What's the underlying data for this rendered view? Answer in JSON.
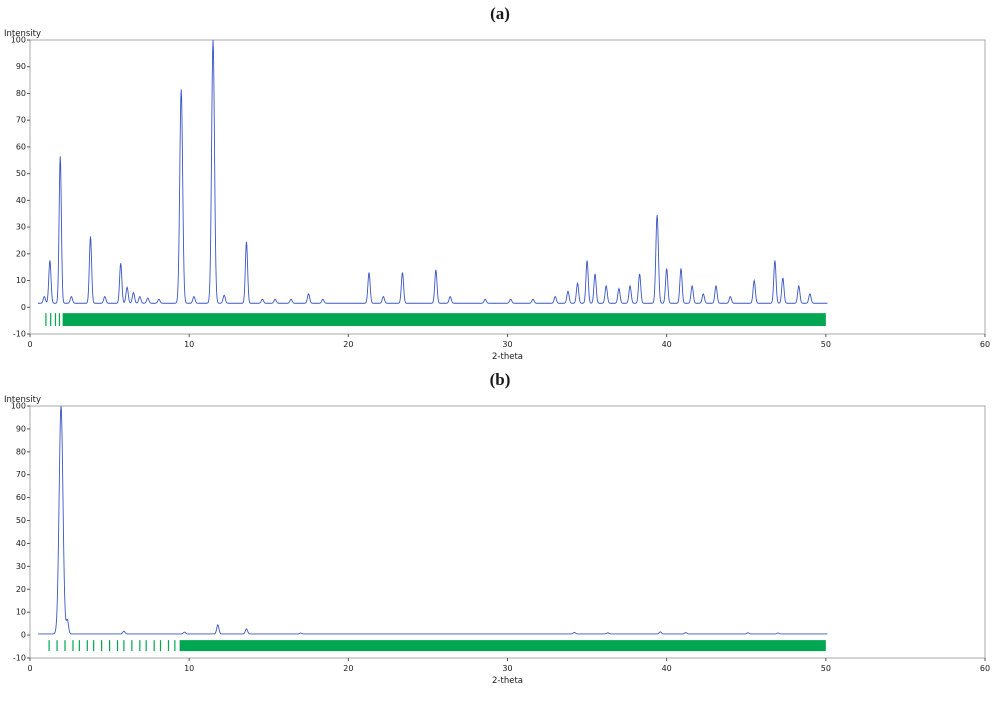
{
  "page": {
    "background": "#ffffff"
  },
  "panels": [
    {
      "title": "(a)"
    },
    {
      "title": "(b)"
    }
  ],
  "chart_data": [
    {
      "type": "line",
      "title": "(a)",
      "xlabel": "2-theta",
      "ylabel": "Intensity",
      "xlim": [
        0,
        60
      ],
      "ylim": [
        -10,
        100
      ],
      "x_ticks": [
        0,
        10,
        20,
        30,
        40,
        50,
        60
      ],
      "y_tick_step": 10,
      "grid": false,
      "legend": "none",
      "line_color": "#3b56c4",
      "marker_color": "#00a651",
      "frame_color": "#aaaaaa",
      "baseline": 1.5,
      "data_x_range": [
        0.5,
        50.1
      ],
      "peaks": [
        [
          0.9,
          2.5
        ],
        [
          1.25,
          16
        ],
        [
          1.9,
          55
        ],
        [
          2.6,
          2.5
        ],
        [
          3.8,
          25
        ],
        [
          4.7,
          2.5
        ],
        [
          5.7,
          15
        ],
        [
          6.1,
          6
        ],
        [
          6.5,
          4
        ],
        [
          6.9,
          2.5
        ],
        [
          7.4,
          2
        ],
        [
          8.1,
          1.5
        ],
        [
          9.5,
          80,
          0.09
        ],
        [
          10.3,
          2.5
        ],
        [
          11.5,
          98.5,
          0.09
        ],
        [
          12.2,
          3
        ],
        [
          13.6,
          23
        ],
        [
          14.6,
          1.5
        ],
        [
          15.4,
          1.5
        ],
        [
          16.4,
          1.5
        ],
        [
          17.5,
          3.5
        ],
        [
          18.4,
          1.5
        ],
        [
          21.3,
          11.5
        ],
        [
          22.2,
          2.5
        ],
        [
          23.4,
          11.5
        ],
        [
          25.5,
          12.5
        ],
        [
          26.4,
          2.5
        ],
        [
          28.6,
          1.5
        ],
        [
          30.2,
          1.5
        ],
        [
          31.6,
          1.5
        ],
        [
          33.0,
          2.5
        ],
        [
          33.8,
          4.5
        ],
        [
          34.4,
          7.5
        ],
        [
          35.0,
          16
        ],
        [
          35.5,
          11
        ],
        [
          36.2,
          6.5
        ],
        [
          37.0,
          5.5
        ],
        [
          37.7,
          6.5
        ],
        [
          38.3,
          11
        ],
        [
          39.4,
          33,
          0.08
        ],
        [
          40.0,
          13
        ],
        [
          40.9,
          13
        ],
        [
          41.6,
          6.5
        ],
        [
          42.3,
          3.5
        ],
        [
          43.1,
          6.5
        ],
        [
          44.0,
          2.5
        ],
        [
          45.5,
          8.5
        ],
        [
          46.8,
          16
        ],
        [
          47.3,
          9.5
        ],
        [
          48.3,
          6.5
        ],
        [
          49.0,
          3.5
        ]
      ],
      "reflection_markers": {
        "sparse": [
          1.0,
          1.3,
          1.6,
          1.85
        ],
        "band": [
          2.05,
          50.0
        ],
        "y_range": [
          -7,
          -2.2
        ]
      }
    },
    {
      "type": "line",
      "title": "(b)",
      "xlabel": "2-theta",
      "ylabel": "Intensity",
      "xlim": [
        0,
        60
      ],
      "ylim": [
        -10,
        100
      ],
      "x_ticks": [
        0,
        10,
        20,
        30,
        40,
        50,
        60
      ],
      "y_tick_step": 10,
      "grid": false,
      "legend": "none",
      "line_color": "#3b56c4",
      "marker_color": "#00a651",
      "frame_color": "#aaaaaa",
      "baseline": 0.5,
      "data_x_range": [
        0.5,
        50.1
      ],
      "peaks": [
        [
          1.95,
          99.5,
          0.12
        ],
        [
          2.35,
          6
        ],
        [
          5.9,
          1.2
        ],
        [
          9.7,
          0.8
        ],
        [
          11.8,
          4
        ],
        [
          13.6,
          2.2
        ],
        [
          17.0,
          0.4
        ],
        [
          34.2,
          0.7
        ],
        [
          36.3,
          0.5
        ],
        [
          39.6,
          0.9
        ],
        [
          41.2,
          0.6
        ],
        [
          45.1,
          0.5
        ],
        [
          47.0,
          0.4
        ]
      ],
      "reflection_markers": {
        "sparse": [
          1.2,
          1.7,
          2.2,
          2.7,
          3.1,
          3.6,
          4.0,
          4.5,
          5.0,
          5.5,
          5.9,
          6.4,
          6.9,
          7.3,
          7.8,
          8.2,
          8.7,
          9.1
        ],
        "band": [
          9.4,
          50.0
        ],
        "y_range": [
          -7,
          -2.2
        ]
      }
    }
  ]
}
